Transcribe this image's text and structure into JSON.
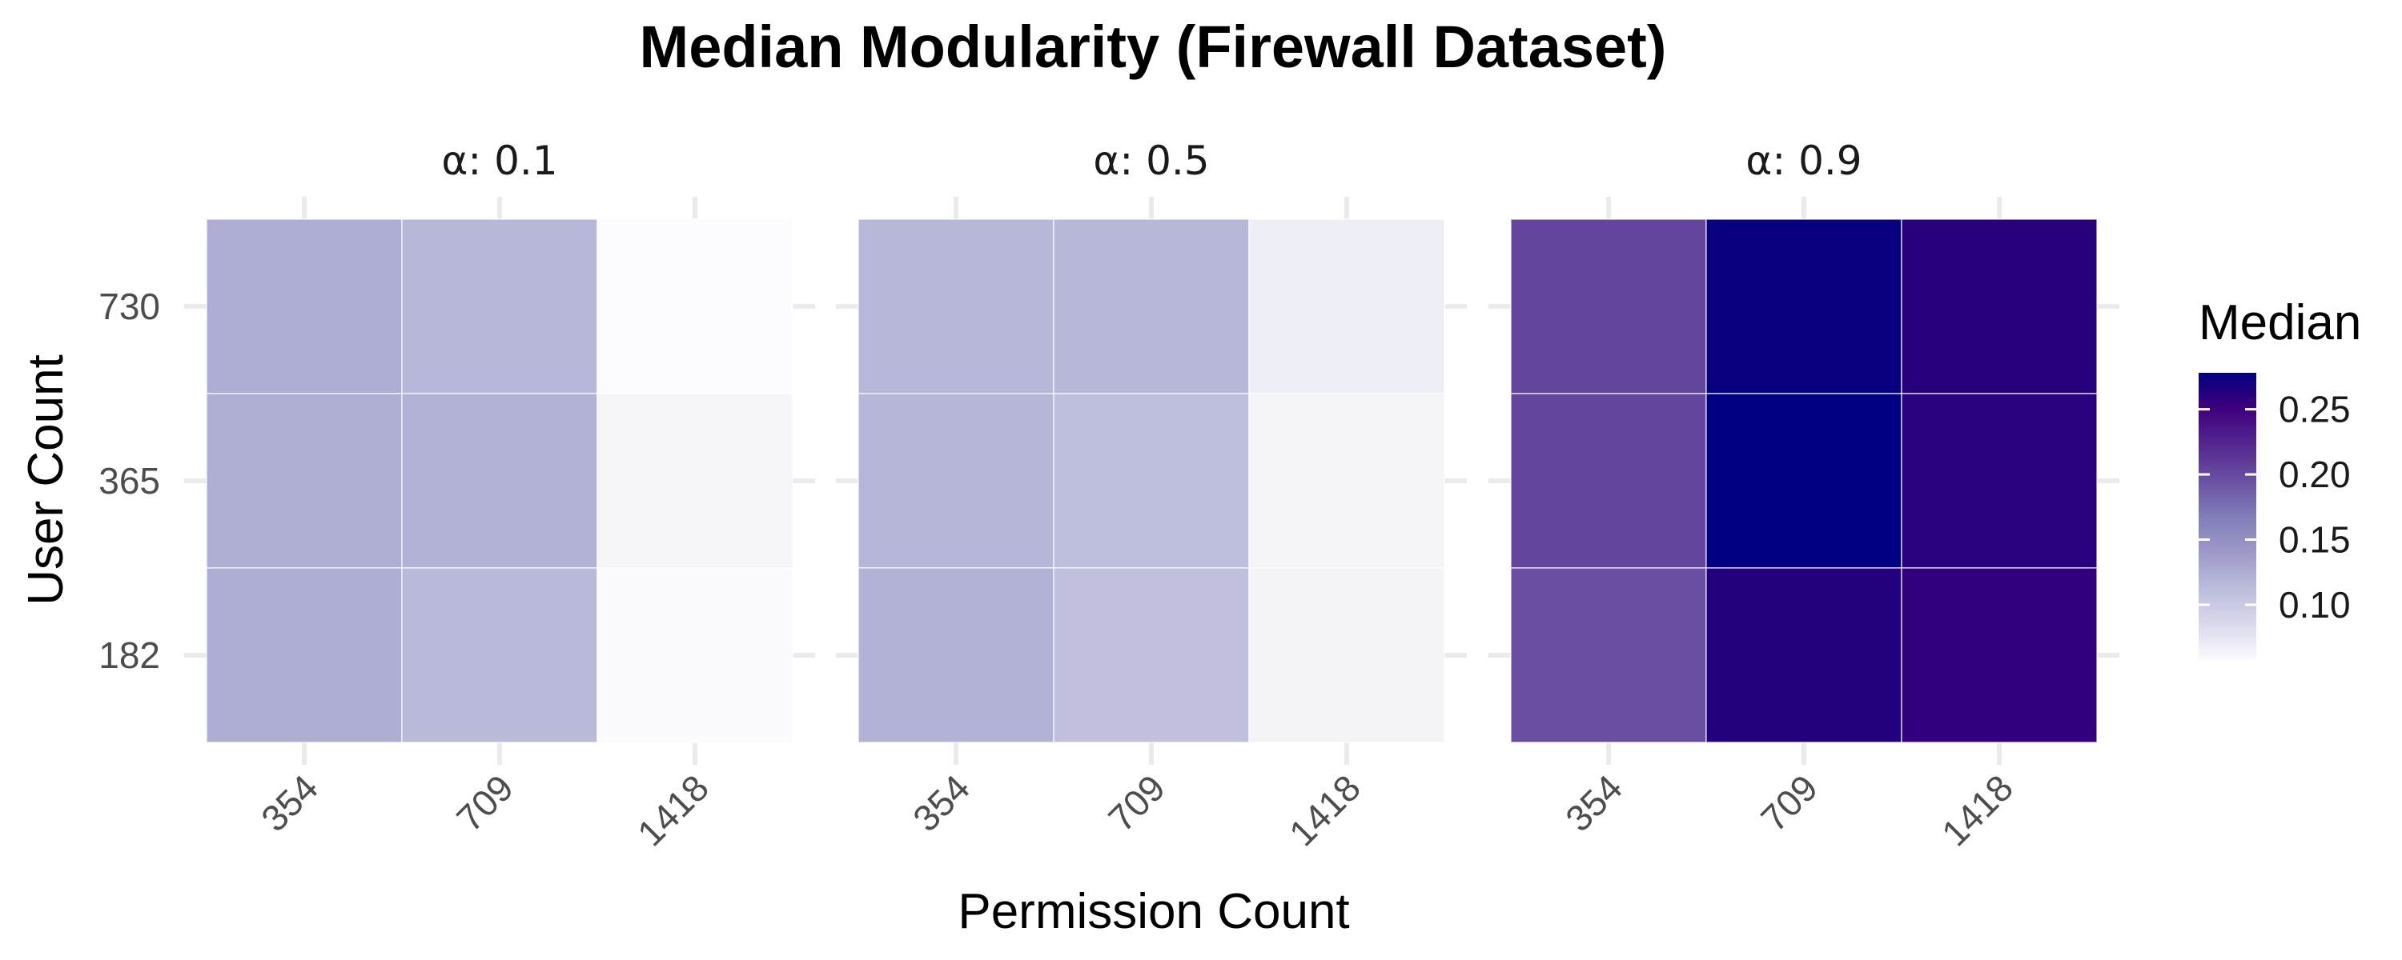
{
  "chart_data": {
    "type": "heatmap",
    "title": "Median Modularity (Firewall Dataset)",
    "xlabel": "Permission Count",
    "ylabel": "User Count",
    "x_categories": [
      "354",
      "709",
      "1418"
    ],
    "y_categories": [
      "182",
      "365",
      "730"
    ],
    "facet_prefix": "α: ",
    "facets": [
      {
        "label": "0.1",
        "values": {
          "182": [
            0.125,
            0.115,
            0.058
          ],
          "365": [
            0.124,
            0.121,
            0.062
          ],
          "730": [
            0.125,
            0.117,
            0.057
          ]
        }
      },
      {
        "label": "0.5",
        "values": {
          "182": [
            0.121,
            0.109,
            0.064
          ],
          "365": [
            0.118,
            0.11,
            0.063
          ],
          "730": [
            0.117,
            0.117,
            0.068
          ]
        }
      },
      {
        "label": "0.9",
        "values": {
          "182": [
            0.197,
            0.263,
            0.257
          ],
          "365": [
            0.203,
            0.278,
            0.26
          ],
          "730": [
            0.203,
            0.274,
            0.261
          ]
        }
      }
    ],
    "legend": {
      "title": "Median",
      "ticks": [
        "0.10",
        "0.15",
        "0.20",
        "0.25"
      ],
      "range": [
        0.057,
        0.278
      ],
      "position": "right",
      "colors": [
        "#fcfbfd",
        "#dadaeb",
        "#bcbddc",
        "#9e9ac8",
        "#807dba",
        "#6a51a3",
        "#54278f",
        "#3f007d",
        "#000080"
      ]
    },
    "grid": true
  }
}
